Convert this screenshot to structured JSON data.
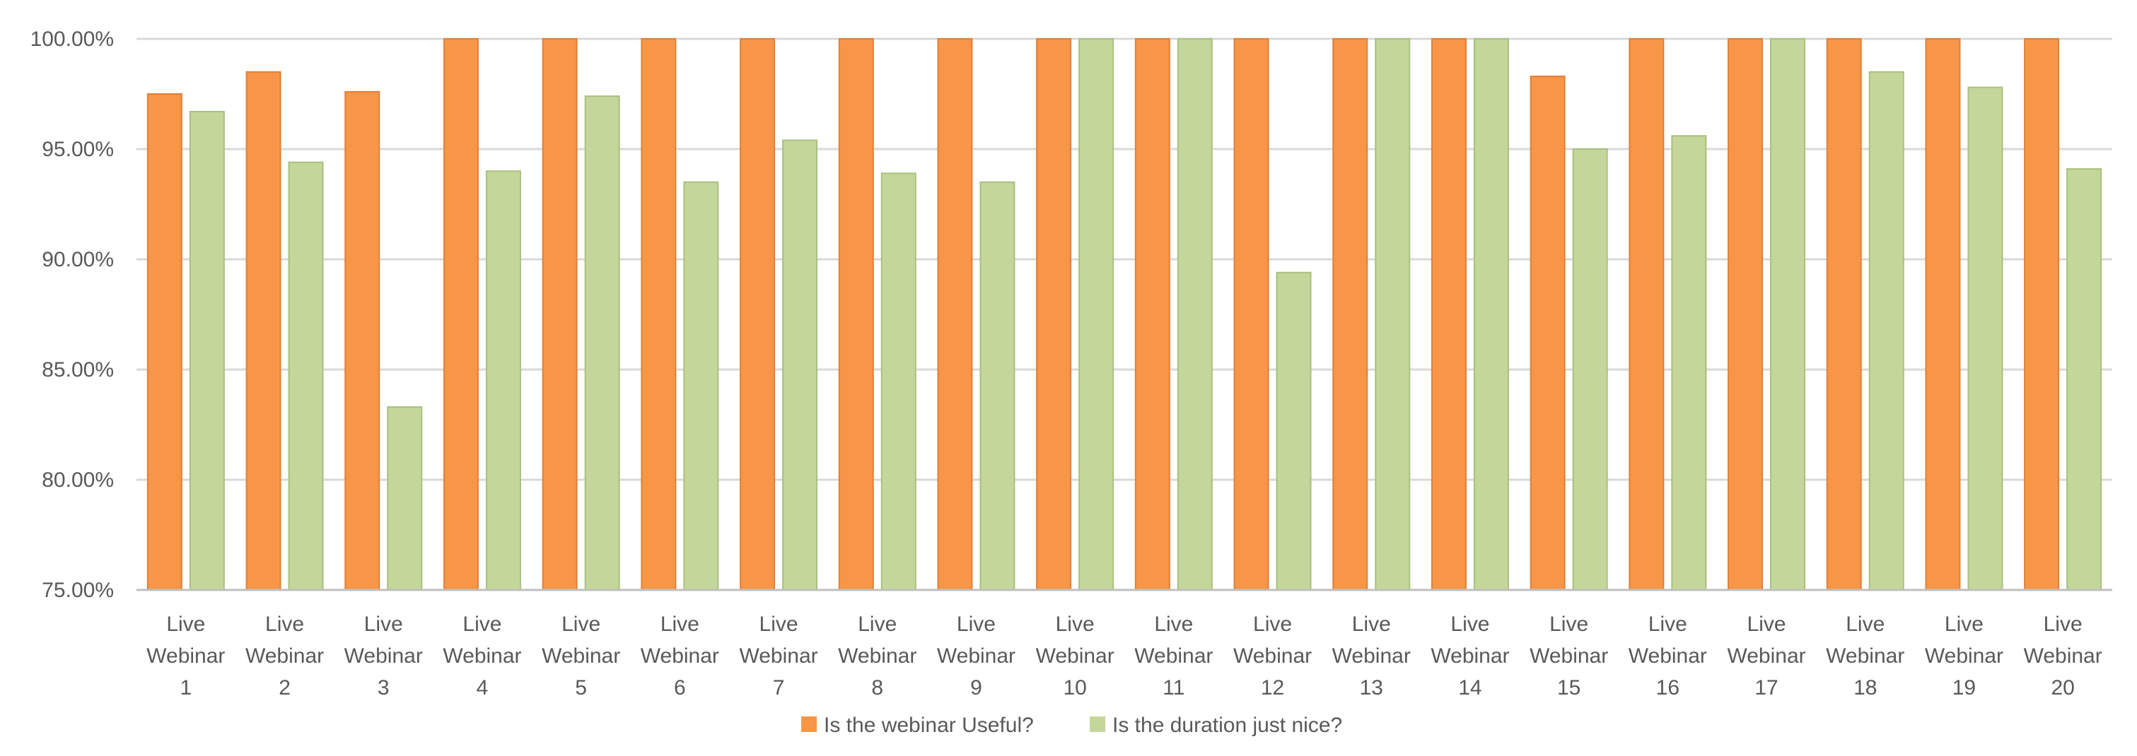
{
  "chart_data": {
    "type": "bar",
    "title": "",
    "xlabel": "",
    "ylabel": "",
    "categories": [
      [
        "Live",
        "Webinar",
        "1"
      ],
      [
        "Live",
        "Webinar",
        "2"
      ],
      [
        "Live",
        "Webinar",
        "3"
      ],
      [
        "Live",
        "Webinar",
        "4"
      ],
      [
        "Live",
        "Webinar",
        "5"
      ],
      [
        "Live",
        "Webinar",
        "6"
      ],
      [
        "Live",
        "Webinar",
        "7"
      ],
      [
        "Live",
        "Webinar",
        "8"
      ],
      [
        "Live",
        "Webinar",
        "9"
      ],
      [
        "Live",
        "Webinar",
        "10"
      ],
      [
        "Live",
        "Webinar",
        "11"
      ],
      [
        "Live",
        "Webinar",
        "12"
      ],
      [
        "Live",
        "Webinar",
        "13"
      ],
      [
        "Live",
        "Webinar",
        "14"
      ],
      [
        "Live",
        "Webinar",
        "15"
      ],
      [
        "Live",
        "Webinar",
        "16"
      ],
      [
        "Live",
        "Webinar",
        "17"
      ],
      [
        "Live",
        "Webinar",
        "18"
      ],
      [
        "Live",
        "Webinar",
        "19"
      ],
      [
        "Live",
        "Webinar",
        "20"
      ]
    ],
    "series": [
      {
        "name": "Is the webinar Useful?",
        "color": "#F79646",
        "stroke": "#E0803A",
        "values": [
          97.5,
          98.5,
          97.6,
          100,
          100,
          100,
          100,
          100,
          100,
          100,
          100,
          100,
          100,
          100,
          98.3,
          100,
          100,
          100,
          100,
          100
        ]
      },
      {
        "name": "Is the duration just nice?",
        "color": "#C4D79B",
        "stroke": "#A9C07E",
        "values": [
          96.7,
          94.4,
          83.3,
          94.0,
          97.4,
          93.5,
          95.4,
          93.9,
          93.5,
          100,
          100,
          89.4,
          100,
          100,
          95.0,
          95.6,
          100,
          98.5,
          97.8,
          94.1
        ]
      }
    ],
    "ylim": [
      75,
      100
    ],
    "yticks": [
      75,
      80,
      85,
      90,
      95,
      100
    ],
    "ytick_labels": [
      "75.00%",
      "80.00%",
      "85.00%",
      "90.00%",
      "95.00%",
      "100.00%"
    ],
    "grid": true,
    "grid_color": "#D9D9D9",
    "legend_position": "bottom"
  }
}
